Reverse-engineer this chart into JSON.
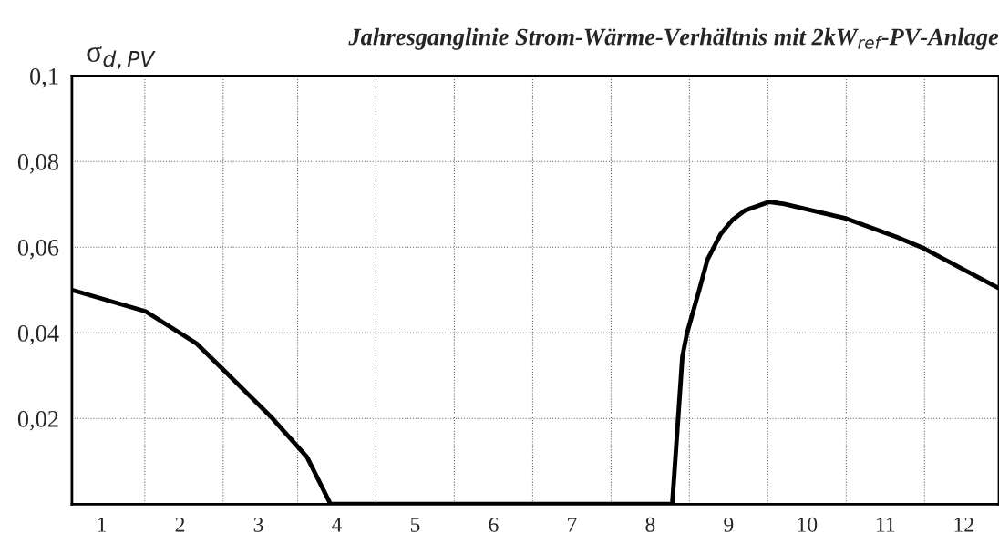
{
  "chart_data": {
    "type": "line",
    "title": "Jahresganglinie Strom-Wärme-Verhältnis mit 2kW$_{ref}$-PV-Anlage",
    "ylabel": "σ$_{d,PV}$",
    "x": [
      0.62,
      1.56,
      2.21,
      2.59,
      3.18,
      3.62,
      3.92,
      8.28,
      8.41,
      8.47,
      8.62,
      8.73,
      8.9,
      9.05,
      9.21,
      9.52,
      9.71,
      10.48,
      11.14,
      11.47,
      12.45
    ],
    "series": [
      {
        "color": "#000000",
        "values": [
          0.05,
          0.045,
          0.0375,
          0.0307,
          0.02,
          0.011,
          0,
          0,
          0.0345,
          0.04,
          0.0497,
          0.0571,
          0.0631,
          0.0664,
          0.0686,
          0.0706,
          0.0701,
          0.0668,
          0.0624,
          0.0599,
          0.0504
        ]
      }
    ],
    "xlim": [
      0.62,
      12.45
    ],
    "xticks": [
      1,
      2,
      3,
      4,
      5,
      6,
      7,
      8,
      9,
      10,
      11,
      12,
      {
        "value": 1.55,
        "label": null
      },
      {
        "value": 2.55,
        "label": null
      },
      {
        "value": 3.5,
        "label": null
      },
      {
        "value": 4.5,
        "label": null
      },
      {
        "value": 5.5,
        "label": null
      },
      {
        "value": 6.5,
        "label": null
      },
      {
        "value": 7.5,
        "label": null
      },
      {
        "value": 8.5,
        "label": null
      },
      {
        "value": 9.5,
        "label": null
      },
      {
        "value": 10.5,
        "label": null
      },
      {
        "value": 11.5,
        "label": null
      }
    ],
    "ylim": [
      0,
      0.1
    ],
    "yticks": [
      {
        "value": 0.02,
        "label": "0,02"
      },
      {
        "value": 0.04,
        "label": "0,04"
      },
      {
        "value": 0.06,
        "label": "0,06"
      },
      {
        "value": 0.08,
        "label": "0,08"
      },
      {
        "value": 0.1,
        "label": "0,1"
      }
    ],
    "grid": true,
    "legend": false,
    "marker": "none",
    "line_style": "solid"
  }
}
